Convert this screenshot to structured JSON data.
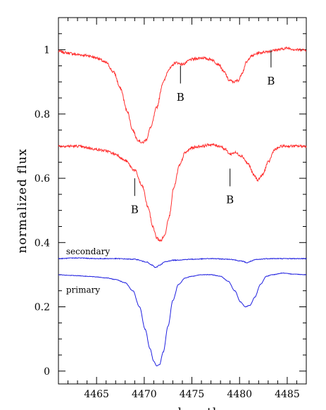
{
  "chart_data": {
    "type": "line",
    "title": "",
    "xlabel": "wavelength",
    "ylabel": "normalized flux",
    "xlim": [
      4461,
      4487
    ],
    "ylim": [
      -0.04,
      1.1
    ],
    "x_ticks_major": [
      4465,
      4470,
      4475,
      4480,
      4485
    ],
    "y_ticks_major": [
      0,
      0.2,
      0.4,
      0.6,
      0.8,
      1
    ],
    "y_tick_labels": [
      "0",
      "0.2",
      "0.4",
      "0.6",
      "0.8",
      "1"
    ],
    "grid": false,
    "series": [
      {
        "color": "#ff3030",
        "noise": 0.004,
        "x": [
          4461,
          4462,
          4463,
          4464,
          4465,
          4466,
          4466.8,
          4467.5,
          4468.2,
          4468.8,
          4469.3,
          4469.8,
          4470.2,
          4470.7,
          4471.3,
          4472,
          4472.6,
          4473.3,
          4474,
          4475,
          4476,
          4477,
          4477.8,
          4478.4,
          4478.9,
          4479.4,
          4479.9,
          4480.3,
          4480.7,
          4481.2,
          4482,
          4483,
          4484,
          4485,
          4486,
          4487
        ],
        "y": [
          0.995,
          0.99,
          0.985,
          0.982,
          0.975,
          0.96,
          0.93,
          0.88,
          0.81,
          0.75,
          0.72,
          0.71,
          0.72,
          0.76,
          0.82,
          0.9,
          0.94,
          0.96,
          0.955,
          0.97,
          0.975,
          0.97,
          0.955,
          0.93,
          0.905,
          0.9,
          0.905,
          0.93,
          0.96,
          0.98,
          0.99,
          0.995,
          1.0,
          1.005,
          1.0,
          1.0
        ]
      },
      {
        "color": "#ff3030",
        "noise": 0.004,
        "x": [
          4461,
          4462,
          4463,
          4464,
          4465,
          4466,
          4467,
          4468,
          4469,
          4469.8,
          4470.4,
          4470.9,
          4471.3,
          4471.7,
          4472.1,
          4472.6,
          4473.1,
          4473.7,
          4474.3,
          4475,
          4476,
          4477,
          4478,
          4478.5,
          4479,
          4479.5,
          4480.2,
          4480.9,
          4481.5,
          4481.9,
          4482.4,
          4483,
          4483.7,
          4484.5,
          4485.5,
          4487
        ],
        "y": [
          0.7,
          0.7,
          0.7,
          0.695,
          0.69,
          0.685,
          0.675,
          0.655,
          0.625,
          0.575,
          0.51,
          0.45,
          0.415,
          0.405,
          0.42,
          0.48,
          0.57,
          0.64,
          0.68,
          0.695,
          0.7,
          0.705,
          0.7,
          0.69,
          0.675,
          0.68,
          0.67,
          0.645,
          0.61,
          0.595,
          0.61,
          0.65,
          0.69,
          0.7,
          0.7,
          0.7
        ]
      },
      {
        "color": "#2020e0",
        "noise": 0.0012,
        "x": [
          4461,
          4463,
          4465,
          4467,
          4469,
          4470.2,
          4470.8,
          4471.2,
          4471.6,
          4472.2,
          4473,
          4475,
          4477,
          4479,
          4480.3,
          4480.8,
          4481.2,
          4481.7,
          4483,
          4485,
          4487
        ],
        "y": [
          0.35,
          0.352,
          0.35,
          0.35,
          0.348,
          0.34,
          0.33,
          0.322,
          0.33,
          0.34,
          0.345,
          0.348,
          0.35,
          0.348,
          0.342,
          0.337,
          0.342,
          0.347,
          0.35,
          0.35,
          0.35
        ]
      },
      {
        "color": "#2020e0",
        "noise": 0.0008,
        "x": [
          4461,
          4462,
          4463,
          4464,
          4465,
          4466,
          4467,
          4468,
          4468.8,
          4469.5,
          4470.1,
          4470.6,
          4471,
          4471.3,
          4471.6,
          4472,
          4472.5,
          4473,
          4473.6,
          4474.3,
          4475,
          4476,
          4477,
          4478,
          4478.8,
          4479.5,
          4480.1,
          4480.6,
          4481.1,
          4481.6,
          4482.2,
          4482.8,
          4483.5,
          4484.5,
          4485.5,
          4487
        ],
        "y": [
          0.3,
          0.298,
          0.297,
          0.295,
          0.293,
          0.29,
          0.285,
          0.275,
          0.25,
          0.2,
          0.13,
          0.07,
          0.03,
          0.016,
          0.02,
          0.06,
          0.14,
          0.22,
          0.27,
          0.29,
          0.295,
          0.3,
          0.3,
          0.295,
          0.28,
          0.25,
          0.215,
          0.2,
          0.205,
          0.23,
          0.27,
          0.295,
          0.3,
          0.305,
          0.302,
          0.3
        ]
      }
    ],
    "annotations": [
      {
        "text": "secondary",
        "x": 4461.8,
        "y": 0.372
      },
      {
        "text": "primary",
        "x": 4461.8,
        "y": 0.253
      }
    ],
    "markers": [
      {
        "text": "B",
        "x": 4473.8,
        "y_top": 0.95,
        "y_bot": 0.895,
        "label_y": 0.855
      },
      {
        "text": "B",
        "x": 4483.3,
        "y_top": 1.0,
        "y_bot": 0.945,
        "label_y": 0.905
      },
      {
        "text": "B",
        "x": 4469.0,
        "y_top": 0.6,
        "y_bot": 0.545,
        "label_y": 0.505
      },
      {
        "text": "B",
        "x": 4479.0,
        "y_top": 0.63,
        "y_bot": 0.575,
        "label_y": 0.535
      }
    ]
  }
}
